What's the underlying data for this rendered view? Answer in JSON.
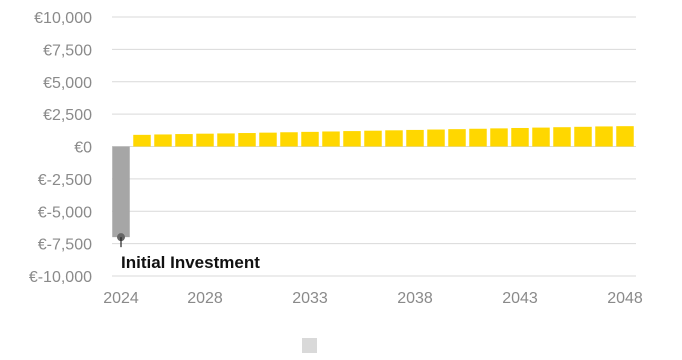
{
  "chart_data": {
    "type": "bar",
    "title": "",
    "xlabel": "",
    "ylabel": "",
    "ylim": [
      -10000,
      10000
    ],
    "yticks": [
      {
        "value": 10000,
        "label": "€10,000"
      },
      {
        "value": 7500,
        "label": "€7,500"
      },
      {
        "value": 5000,
        "label": "€5,000"
      },
      {
        "value": 2500,
        "label": "€2,500"
      },
      {
        "value": 0,
        "label": "€0"
      },
      {
        "value": -2500,
        "label": "€-2,500"
      },
      {
        "value": -5000,
        "label": "€-5,000"
      },
      {
        "value": -7500,
        "label": "€-7,500"
      },
      {
        "value": -10000,
        "label": "€-10,000"
      }
    ],
    "xticks": [
      {
        "year": 2024,
        "label": "2024"
      },
      {
        "year": 2028,
        "label": "2028"
      },
      {
        "year": 2033,
        "label": "2033"
      },
      {
        "year": 2038,
        "label": "2038"
      },
      {
        "year": 2043,
        "label": "2043"
      },
      {
        "year": 2048,
        "label": "2048"
      }
    ],
    "grid": true,
    "legend": "bottom",
    "legend_color": "#d9d9d9",
    "initial_investment": {
      "year": 2024,
      "value": -7000,
      "color": "#a6a6a6",
      "label": "Initial Investment"
    },
    "cashflow_color": "#ffd700",
    "cashflows": [
      {
        "year": 2025,
        "value": 900
      },
      {
        "year": 2026,
        "value": 930
      },
      {
        "year": 2027,
        "value": 960
      },
      {
        "year": 2028,
        "value": 990
      },
      {
        "year": 2029,
        "value": 1010
      },
      {
        "year": 2030,
        "value": 1040
      },
      {
        "year": 2031,
        "value": 1070
      },
      {
        "year": 2032,
        "value": 1100
      },
      {
        "year": 2033,
        "value": 1130
      },
      {
        "year": 2034,
        "value": 1160
      },
      {
        "year": 2035,
        "value": 1190
      },
      {
        "year": 2036,
        "value": 1220
      },
      {
        "year": 2037,
        "value": 1250
      },
      {
        "year": 2038,
        "value": 1280
      },
      {
        "year": 2039,
        "value": 1310
      },
      {
        "year": 2040,
        "value": 1340
      },
      {
        "year": 2041,
        "value": 1370
      },
      {
        "year": 2042,
        "value": 1400
      },
      {
        "year": 2043,
        "value": 1430
      },
      {
        "year": 2044,
        "value": 1460
      },
      {
        "year": 2045,
        "value": 1490
      },
      {
        "year": 2046,
        "value": 1520
      },
      {
        "year": 2047,
        "value": 1550
      },
      {
        "year": 2048,
        "value": 1570
      }
    ]
  }
}
